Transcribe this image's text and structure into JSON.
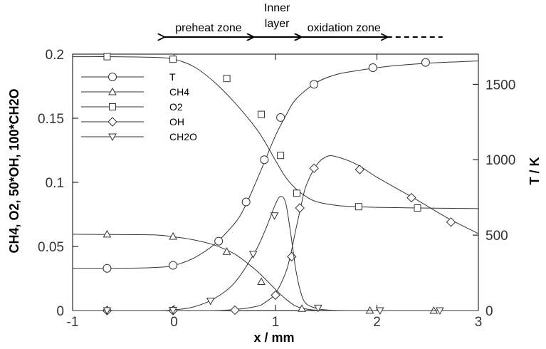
{
  "chart_data": {
    "type": "line",
    "xlabel": "x / mm",
    "ylabel_left": "CH4, O2, 50*OH, 100*CH2O",
    "ylabel_right": "T / K",
    "xlim": [
      -1,
      3
    ],
    "ylim_left": [
      0,
      0.2
    ],
    "ylim_right": [
      0,
      1700
    ],
    "x_ticks": [
      -1,
      0,
      1,
      2,
      3
    ],
    "y_ticks_left": [
      0,
      0.05,
      0.1,
      0.15,
      0.2
    ],
    "y_ticks_left_labels": [
      "0",
      "0.05",
      "0.1",
      "0.15",
      "0.2"
    ],
    "y_ticks_right": [
      0,
      500,
      1000,
      1500
    ],
    "y_ticks_right_labels": [
      "0",
      "500",
      "1000",
      "1500"
    ],
    "zones": [
      {
        "label": "preheat zone",
        "from": -0.1,
        "to": 0.78
      },
      {
        "label": "Inner\nlayer",
        "from": 0.78,
        "to": 1.25
      },
      {
        "label": "oxidation zone",
        "from": 1.25,
        "to": 2.1
      }
    ],
    "legend_position": "upper-left",
    "series": [
      {
        "name": "T",
        "marker": "circle",
        "axis": "right",
        "x": [
          -1,
          -0.6,
          -0.2,
          0,
          0.2,
          0.4,
          0.6,
          0.7,
          0.8,
          0.9,
          1.0,
          1.1,
          1.2,
          1.4,
          1.6,
          1.8,
          2.0,
          2.2,
          2.5,
          3.0
        ],
        "y": [
          280,
          280,
          285,
          300,
          350,
          440,
          580,
          690,
          840,
          1000,
          1160,
          1290,
          1400,
          1510,
          1565,
          1590,
          1610,
          1625,
          1640,
          1655
        ],
        "markers_x": [
          -0.66,
          -0.01,
          0.44,
          0.71,
          0.89,
          1.05,
          1.38,
          1.96,
          2.48
        ],
        "markers_y": [
          280,
          300,
          460,
          720,
          1000,
          1280,
          1500,
          1610,
          1645
        ]
      },
      {
        "name": "CH4",
        "marker": "triangle-up",
        "axis": "left",
        "x": [
          -1,
          -0.6,
          -0.2,
          0,
          0.2,
          0.4,
          0.6,
          0.8,
          0.9,
          1.0,
          1.1,
          1.2,
          1.3,
          1.4,
          1.6,
          2.0,
          3.0
        ],
        "y": [
          0.0595,
          0.0593,
          0.059,
          0.0575,
          0.055,
          0.051,
          0.044,
          0.032,
          0.0245,
          0.0165,
          0.009,
          0.0035,
          0.0012,
          0.0003,
          0.0,
          0.0,
          0.0
        ],
        "markers_x": [
          -0.66,
          -0.01,
          0.52,
          0.86,
          1.26,
          1.93,
          2.56
        ],
        "markers_y": [
          0.0595,
          0.0578,
          0.046,
          0.0225,
          0.0015,
          0.0001,
          0.0
        ]
      },
      {
        "name": "O2",
        "marker": "square",
        "axis": "left",
        "x": [
          -1,
          -0.6,
          -0.2,
          0,
          0.2,
          0.4,
          0.6,
          0.8,
          0.9,
          1.0,
          1.1,
          1.2,
          1.3,
          1.4,
          1.6,
          1.8,
          2.0,
          2.4,
          3.0
        ],
        "y": [
          0.198,
          0.198,
          0.1975,
          0.196,
          0.19,
          0.178,
          0.162,
          0.143,
          0.131,
          0.117,
          0.104,
          0.095,
          0.089,
          0.085,
          0.082,
          0.081,
          0.0805,
          0.08,
          0.0795
        ],
        "markers_x": [
          -0.66,
          -0.01,
          0.52,
          0.86,
          1.05,
          1.21,
          1.82,
          2.4
        ],
        "markers_y": [
          0.198,
          0.196,
          0.181,
          0.153,
          0.121,
          0.0915,
          0.081,
          0.08
        ]
      },
      {
        "name": "OH",
        "marker": "diamond",
        "axis": "left",
        "x": [
          -1,
          0,
          0.5,
          0.8,
          0.9,
          1.0,
          1.1,
          1.15,
          1.2,
          1.25,
          1.3,
          1.4,
          1.5,
          1.6,
          1.8,
          2.0,
          2.4,
          2.7,
          3.0
        ],
        "y": [
          0.0,
          0.0,
          0.0003,
          0.003,
          0.0065,
          0.0135,
          0.0295,
          0.044,
          0.063,
          0.081,
          0.097,
          0.113,
          0.12,
          0.12,
          0.114,
          0.104,
          0.086,
          0.072,
          0.06
        ],
        "markers_x": [
          -0.66,
          -0.01,
          0.6,
          1.0,
          1.16,
          1.24,
          1.38,
          1.83,
          2.34,
          2.73
        ],
        "markers_y": [
          0.0,
          0.0,
          0.0003,
          0.012,
          0.042,
          0.08,
          0.111,
          0.11,
          0.088,
          0.069
        ]
      },
      {
        "name": "CH2O",
        "marker": "triangle-down",
        "axis": "left",
        "x": [
          -1,
          -0.2,
          0,
          0.2,
          0.4,
          0.6,
          0.8,
          0.9,
          1.0,
          1.05,
          1.1,
          1.15,
          1.2,
          1.25,
          1.3,
          1.4,
          1.5,
          1.7,
          2.0,
          3.0
        ],
        "y": [
          0.0,
          0.0,
          0.0005,
          0.003,
          0.0095,
          0.022,
          0.046,
          0.063,
          0.083,
          0.089,
          0.084,
          0.06,
          0.032,
          0.014,
          0.0055,
          0.0018,
          0.0005,
          0.0,
          0.0,
          0.0
        ],
        "markers_x": [
          -0.66,
          -0.01,
          0.36,
          0.78,
          0.99,
          1.42,
          2.03,
          2.62
        ],
        "markers_y": [
          0.0,
          0.0003,
          0.0075,
          0.044,
          0.074,
          0.002,
          0.0,
          0.0
        ]
      }
    ]
  }
}
